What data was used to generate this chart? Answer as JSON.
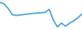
{
  "x": [
    0,
    1,
    2,
    3,
    4,
    5,
    6,
    7,
    8,
    9,
    10,
    11,
    12,
    13,
    14,
    15,
    16,
    17,
    18,
    19,
    20
  ],
  "y": [
    22,
    21,
    18,
    14,
    13.5,
    13.8,
    14.2,
    14.5,
    14.8,
    15.0,
    15.2,
    15.5,
    17.5,
    10.5,
    6.0,
    8.5,
    6.5,
    8.5,
    10.0,
    12.0,
    14.5
  ],
  "line_color": "#4da6d9",
  "line_width": 1.5,
  "bg_color": "#ffffff",
  "ylim": [
    4,
    24
  ]
}
